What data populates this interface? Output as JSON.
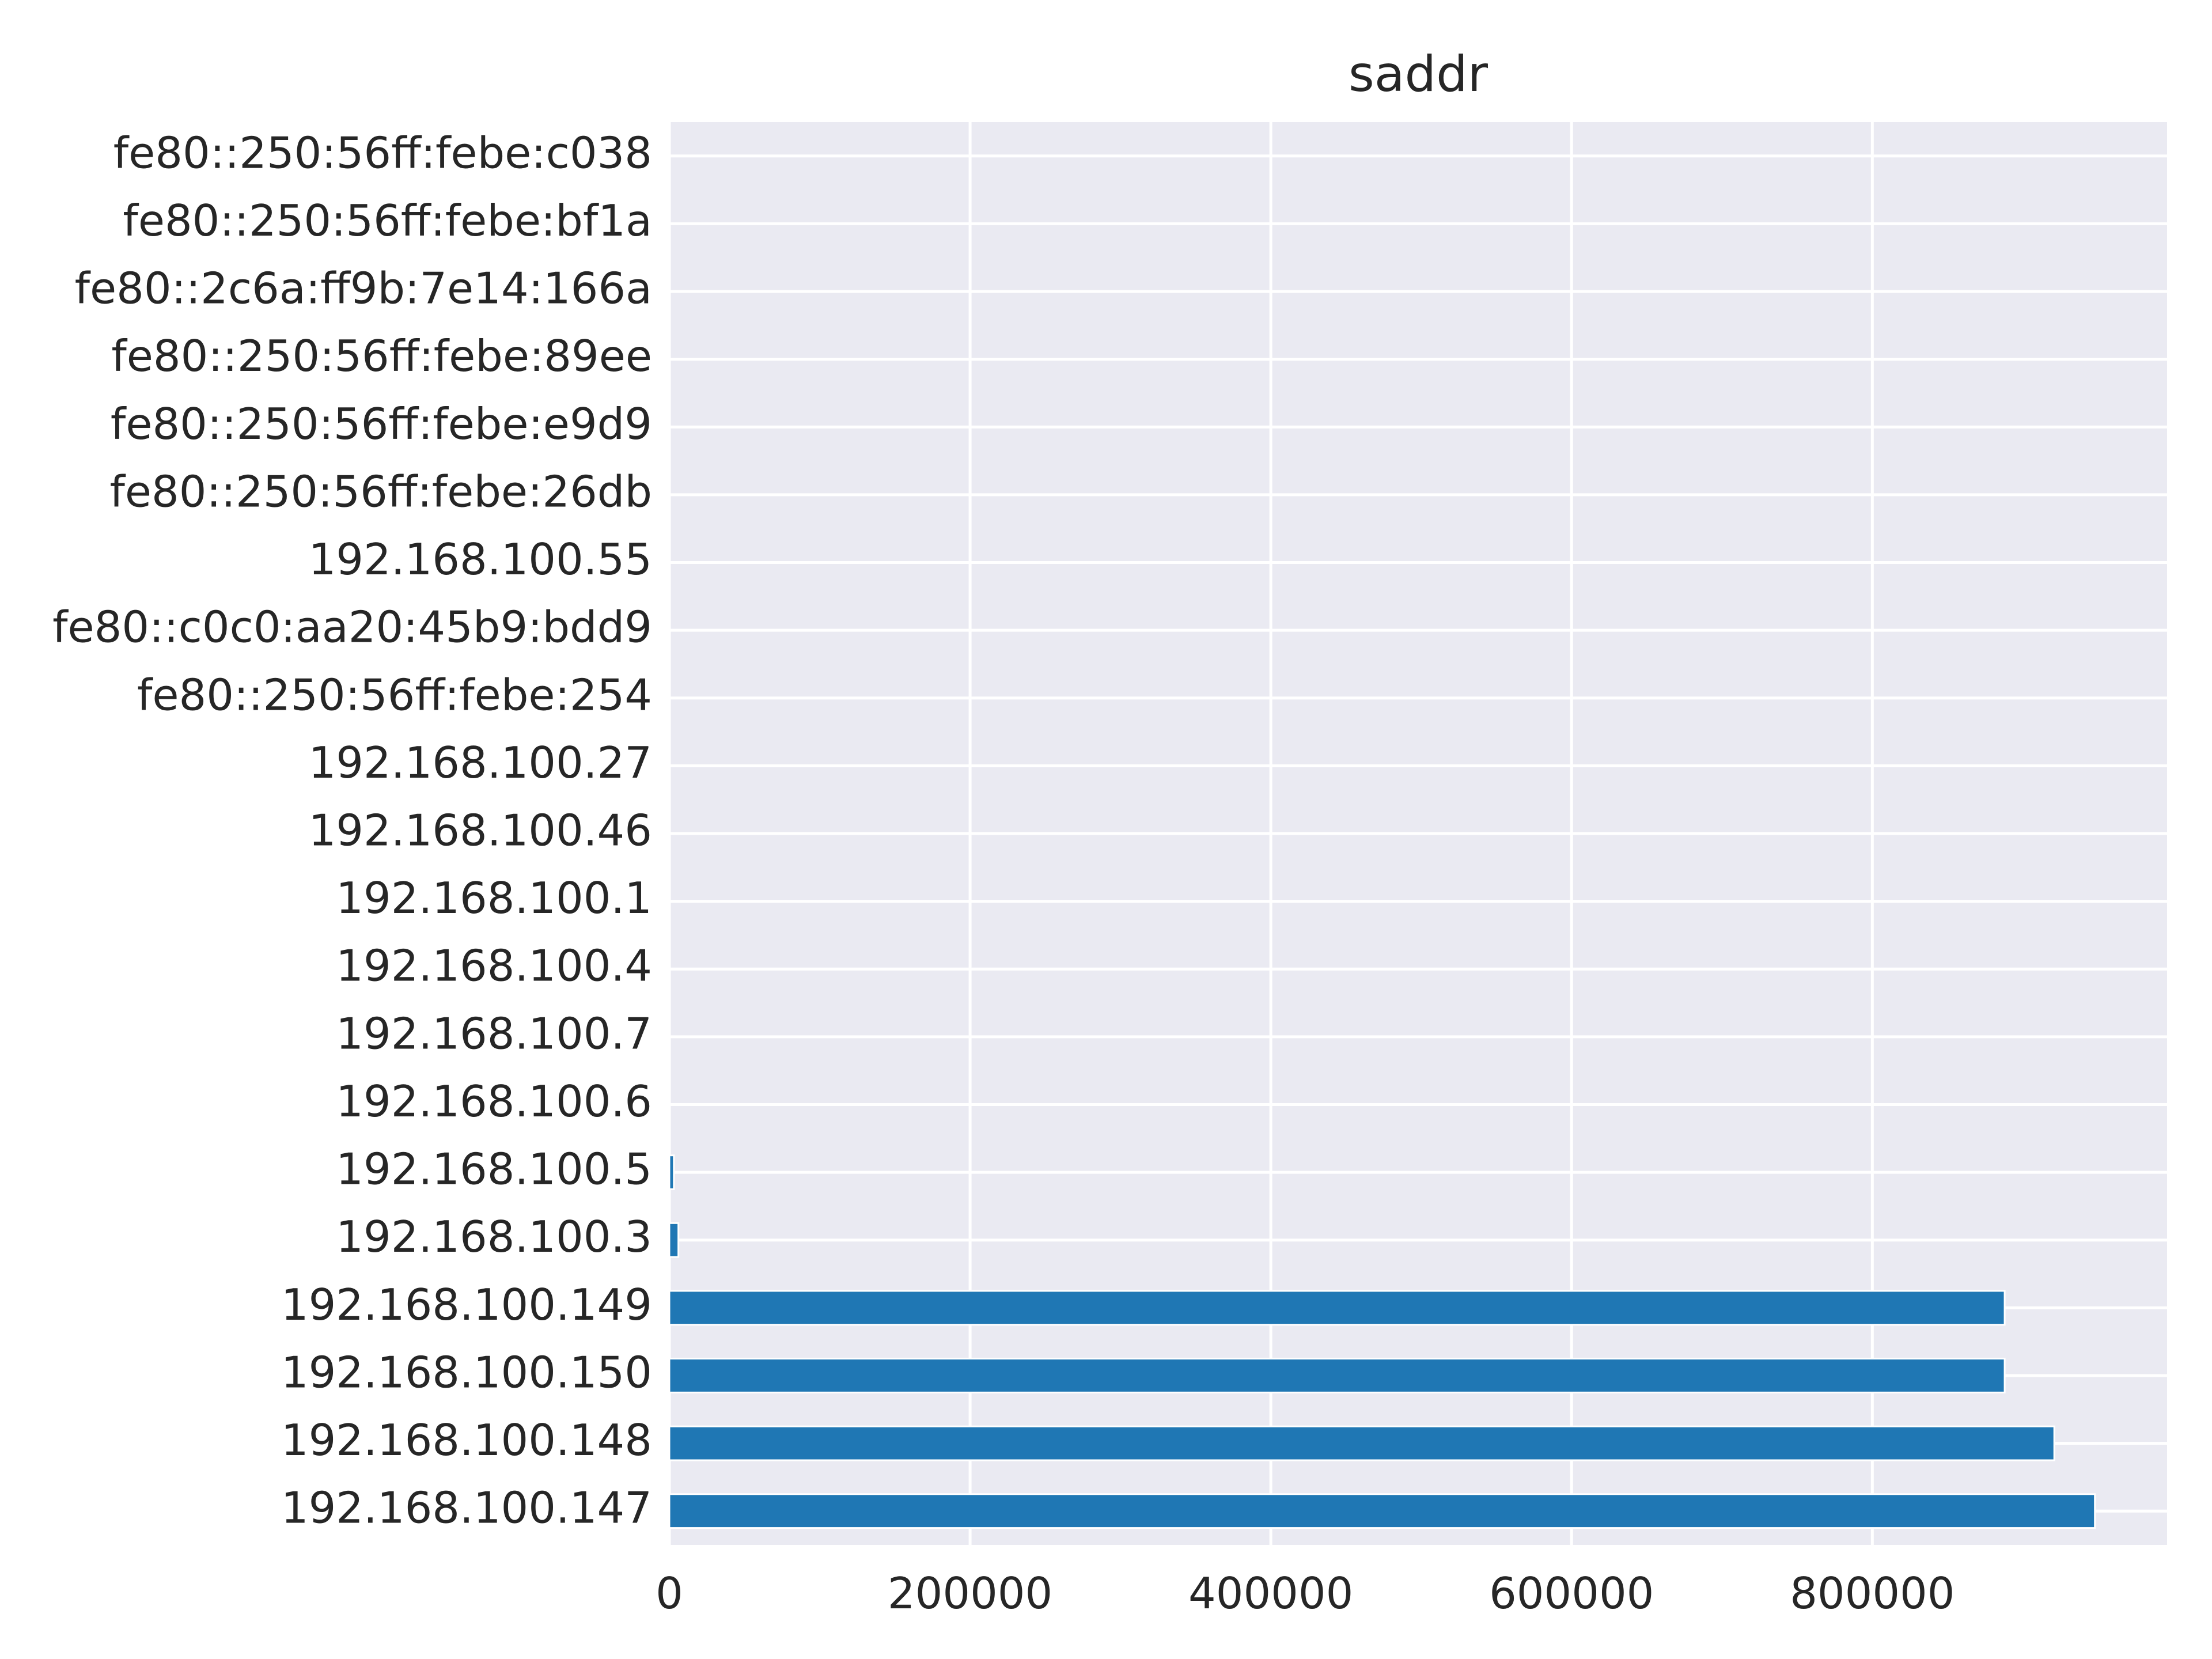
{
  "chart_data": {
    "type": "bar",
    "orientation": "horizontal",
    "title": "saddr",
    "xlabel": "",
    "ylabel": "",
    "xlim": [
      0,
      996000
    ],
    "x_ticks": [
      0,
      200000,
      400000,
      600000,
      800000
    ],
    "x_tick_labels": [
      "0",
      "200000",
      "400000",
      "600000",
      "800000"
    ],
    "grid": true,
    "legend": "none",
    "bar_color": "#1f77b4",
    "background_color": "#eaeaf2",
    "categories": [
      "192.168.100.147",
      "192.168.100.148",
      "192.168.100.150",
      "192.168.100.149",
      "192.168.100.3",
      "192.168.100.5",
      "192.168.100.6",
      "192.168.100.7",
      "192.168.100.4",
      "192.168.100.1",
      "192.168.100.46",
      "192.168.100.27",
      "fe80::250:56ff:febe:254",
      "fe80::c0c0:aa20:45b9:bdd9",
      "192.168.100.55",
      "fe80::250:56ff:febe:26db",
      "fe80::250:56ff:febe:e9d9",
      "fe80::250:56ff:febe:89ee",
      "fe80::2c6a:ff9b:7e14:166a",
      "fe80::250:56ff:febe:bf1a",
      "fe80::250:56ff:febe:c038"
    ],
    "values": [
      948000,
      921000,
      888000,
      888000,
      6000,
      3000,
      300,
      200,
      150,
      120,
      100,
      80,
      50,
      40,
      30,
      20,
      15,
      12,
      10,
      8,
      5
    ]
  }
}
